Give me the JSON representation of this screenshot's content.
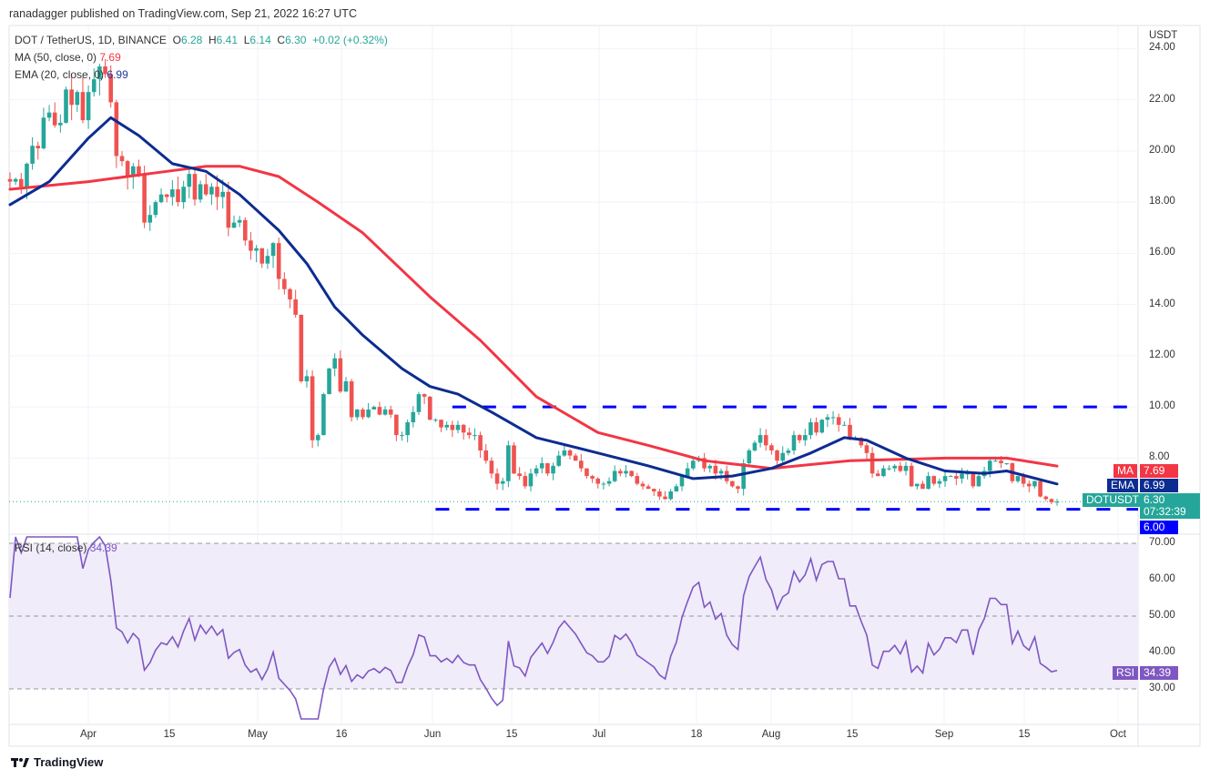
{
  "header": {
    "published": "ranadagger published on TradingView.com, Sep 21, 2022 16:27 UTC"
  },
  "legend": {
    "symbol": "DOT / TetherUS, 1D, BINANCE",
    "o_label": "O",
    "o": "6.28",
    "h_label": "H",
    "h": "6.41",
    "l_label": "L",
    "l": "6.14",
    "c_label": "C",
    "c": "6.30",
    "change": "+0.02 (+0.32%)",
    "ma_label": "MA (50, close, 0)",
    "ma_value": "7.69",
    "ema_label": "EMA (20, close, 0)",
    "ema_value": "6.99",
    "rsi_label": "RSI (14, close)",
    "rsi_value": "34.39"
  },
  "price_axis": {
    "unit": "USDT",
    "ticks": [
      "24.00",
      "22.00",
      "20.00",
      "18.00",
      "16.00",
      "14.00",
      "12.00",
      "10.00",
      "8.00",
      "6.00"
    ]
  },
  "rsi_axis": {
    "ticks": [
      "70.00",
      "60.00",
      "50.00",
      "40.00",
      "30.00"
    ]
  },
  "time_axis": {
    "ticks": [
      "Apr",
      "15",
      "May",
      "16",
      "Jun",
      "15",
      "Jul",
      "18",
      "Aug",
      "15",
      "Sep",
      "15",
      "Oct"
    ]
  },
  "tags": {
    "ma": "MA",
    "ma_value": "7.69",
    "ema": "EMA",
    "ema_value": "6.99",
    "symbol": "DOTUSDT",
    "price": "6.30",
    "countdown": "07:32:39",
    "support": "6.00",
    "rsi": "RSI",
    "rsi_value": "34.39"
  },
  "footer": {
    "brand": "TradingView"
  },
  "colors": {
    "up": "#26a69a",
    "down": "#ef5350",
    "ma": "#f23645",
    "ema": "#0d2c91",
    "level": "#0000ff",
    "rsi": "#7e57c2",
    "rsi_band": "#f0ecf9"
  },
  "chart_data": {
    "type": "candlestick",
    "interval": "1D",
    "start": "2022-03-18",
    "closes": {
      "mar": [
        18.8,
        18.9,
        18.6,
        19.5,
        20.2,
        20.1,
        21.3,
        21.5,
        21.0,
        21.1,
        22.4,
        21.8,
        22.3,
        21.2
      ],
      "apr": [
        22.3,
        22.8,
        23.3,
        23.0,
        21.9,
        19.8,
        19.6,
        19.0,
        19.4,
        19.1,
        17.2,
        17.5,
        18.0,
        18.3,
        18.2,
        18.5,
        18.0,
        18.6,
        19.1,
        18.1,
        18.7,
        18.3,
        18.6,
        18.2,
        18.4,
        17.0,
        17.2,
        17.3,
        16.5,
        16.1
      ],
      "may": [
        16.2,
        15.6,
        15.9,
        16.4,
        15.0,
        14.6,
        14.2,
        13.6,
        11.0,
        11.2,
        8.7,
        8.9,
        10.5,
        11.5,
        11.9,
        10.6,
        11.0,
        9.6,
        9.9,
        9.6,
        9.9,
        10.0,
        9.7,
        9.9,
        9.7,
        8.9,
        8.9,
        9.4,
        9.8,
        10.5,
        10.4
      ],
      "jun": [
        9.5,
        9.5,
        9.2,
        9.3,
        9.1,
        9.3,
        9.0,
        8.9,
        8.9,
        8.3,
        7.9,
        7.4,
        7.0,
        7.1,
        8.5,
        7.4,
        7.3,
        6.9,
        7.4,
        7.6,
        7.8,
        7.4,
        7.7,
        8.1,
        8.3,
        8.1,
        7.9,
        7.6,
        7.3,
        7.2
      ],
      "jul": [
        7.0,
        7.0,
        7.1,
        7.5,
        7.4,
        7.5,
        7.3,
        7.0,
        6.9,
        6.8,
        6.7,
        6.5,
        6.4,
        6.7,
        6.9,
        7.3,
        7.6,
        7.9,
        8.0,
        7.6,
        7.7,
        7.4,
        7.5,
        7.1,
        6.9,
        6.8,
        7.8,
        8.3,
        8.6,
        8.9,
        8.5
      ],
      "aug": [
        8.3,
        7.9,
        8.2,
        8.3,
        8.9,
        8.7,
        8.9,
        9.4,
        9.0,
        9.5,
        9.6,
        9.6,
        9.3,
        9.3,
        8.8,
        8.8,
        8.5,
        8.2,
        7.4,
        7.3,
        7.6,
        7.6,
        7.7,
        7.5,
        7.7,
        6.9,
        7.0,
        6.8,
        7.3,
        7.0,
        7.1
      ],
      "sep": [
        7.3,
        7.3,
        7.2,
        7.4,
        7.4,
        6.9,
        7.3,
        7.5,
        7.9,
        7.9,
        7.8,
        7.8,
        7.1,
        7.3,
        7.0,
        6.9,
        7.1,
        6.5,
        6.4,
        6.28,
        6.3
      ]
    },
    "last_candle": {
      "open": 6.28,
      "high": 6.41,
      "low": 6.14,
      "close": 6.3
    },
    "ma50": [
      [
        "2022-03-18",
        18.5
      ],
      [
        "2022-04-01",
        18.8
      ],
      [
        "2022-04-15",
        19.2
      ],
      [
        "2022-04-22",
        19.4
      ],
      [
        "2022-04-28",
        19.4
      ],
      [
        "2022-05-05",
        19.0
      ],
      [
        "2022-05-12",
        18.0
      ],
      [
        "2022-05-20",
        16.8
      ],
      [
        "2022-06-01",
        14.3
      ],
      [
        "2022-06-10",
        12.6
      ],
      [
        "2022-06-20",
        10.4
      ],
      [
        "2022-07-01",
        9.0
      ],
      [
        "2022-07-10",
        8.5
      ],
      [
        "2022-07-20",
        7.9
      ],
      [
        "2022-08-01",
        7.6
      ],
      [
        "2022-08-15",
        7.9
      ],
      [
        "2022-09-01",
        8.0
      ],
      [
        "2022-09-12",
        8.0
      ],
      [
        "2022-09-21",
        7.69
      ]
    ],
    "ema20": [
      [
        "2022-03-18",
        17.9
      ],
      [
        "2022-03-25",
        18.8
      ],
      [
        "2022-04-01",
        20.5
      ],
      [
        "2022-04-05",
        21.3
      ],
      [
        "2022-04-10",
        20.6
      ],
      [
        "2022-04-16",
        19.5
      ],
      [
        "2022-04-22",
        19.2
      ],
      [
        "2022-04-28",
        18.3
      ],
      [
        "2022-05-05",
        16.9
      ],
      [
        "2022-05-10",
        15.6
      ],
      [
        "2022-05-15",
        13.9
      ],
      [
        "2022-05-20",
        12.8
      ],
      [
        "2022-05-27",
        11.5
      ],
      [
        "2022-06-01",
        10.8
      ],
      [
        "2022-06-06",
        10.5
      ],
      [
        "2022-06-12",
        9.8
      ],
      [
        "2022-06-20",
        8.8
      ],
      [
        "2022-07-01",
        8.2
      ],
      [
        "2022-07-10",
        7.7
      ],
      [
        "2022-07-18",
        7.2
      ],
      [
        "2022-07-25",
        7.3
      ],
      [
        "2022-08-01",
        7.6
      ],
      [
        "2022-08-08",
        8.2
      ],
      [
        "2022-08-14",
        8.8
      ],
      [
        "2022-08-18",
        8.7
      ],
      [
        "2022-08-25",
        8.0
      ],
      [
        "2022-09-01",
        7.5
      ],
      [
        "2022-09-08",
        7.4
      ],
      [
        "2022-09-12",
        7.5
      ],
      [
        "2022-09-21",
        6.99
      ]
    ],
    "levels": [
      {
        "price": 10.0,
        "from": "2022-06-05"
      },
      {
        "price": 6.0,
        "from": "2022-06-02"
      }
    ],
    "ylim": [
      5.1,
      24.9
    ],
    "rsi": {
      "period": 14,
      "ylim": [
        21.75,
        71.75
      ],
      "bands": [
        30,
        50,
        70
      ]
    }
  }
}
